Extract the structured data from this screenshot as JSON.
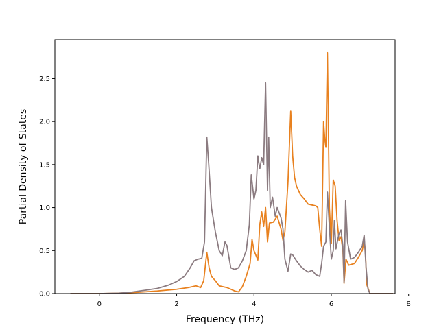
{
  "chart_data": {
    "type": "line",
    "xlabel": "Frequency (THz)",
    "ylabel": "Partial Density of States",
    "xlim": [
      -1.15,
      7.65
    ],
    "ylim": [
      0,
      2.95
    ],
    "xticks": [
      {
        "value": 0,
        "label": "0"
      },
      {
        "value": 2,
        "label": "2"
      },
      {
        "value": 4,
        "label": "4"
      },
      {
        "value": 6,
        "label": "6"
      },
      {
        "value": 8,
        "label": "8"
      }
    ],
    "yticks": [
      {
        "value": 0.0,
        "label": "0.0"
      },
      {
        "value": 0.5,
        "label": "0.5"
      },
      {
        "value": 1.0,
        "label": "1.0"
      },
      {
        "value": 1.5,
        "label": "1.5"
      },
      {
        "value": 2.0,
        "label": "2.0"
      },
      {
        "value": 2.5,
        "label": "2.5"
      }
    ],
    "grid": false,
    "series": [
      {
        "color": "#e8811f",
        "points": [
          [
            -0.75,
            0.0
          ],
          [
            0.0,
            0.0
          ],
          [
            0.5,
            0.005
          ],
          [
            1.0,
            0.015
          ],
          [
            1.5,
            0.03
          ],
          [
            2.0,
            0.05
          ],
          [
            2.3,
            0.07
          ],
          [
            2.5,
            0.09
          ],
          [
            2.62,
            0.07
          ],
          [
            2.7,
            0.15
          ],
          [
            2.78,
            0.48
          ],
          [
            2.84,
            0.3
          ],
          [
            2.9,
            0.2
          ],
          [
            3.0,
            0.15
          ],
          [
            3.1,
            0.09
          ],
          [
            3.3,
            0.07
          ],
          [
            3.5,
            0.03
          ],
          [
            3.6,
            0.02
          ],
          [
            3.7,
            0.08
          ],
          [
            3.8,
            0.2
          ],
          [
            3.9,
            0.35
          ],
          [
            3.95,
            0.63
          ],
          [
            4.0,
            0.5
          ],
          [
            4.1,
            0.39
          ],
          [
            4.15,
            0.8
          ],
          [
            4.2,
            0.95
          ],
          [
            4.25,
            0.78
          ],
          [
            4.3,
            1.0
          ],
          [
            4.35,
            0.6
          ],
          [
            4.4,
            0.82
          ],
          [
            4.5,
            0.83
          ],
          [
            4.6,
            0.9
          ],
          [
            4.7,
            0.75
          ],
          [
            4.75,
            0.62
          ],
          [
            4.8,
            0.72
          ],
          [
            4.88,
            1.3
          ],
          [
            4.95,
            2.12
          ],
          [
            5.0,
            1.6
          ],
          [
            5.05,
            1.35
          ],
          [
            5.1,
            1.25
          ],
          [
            5.2,
            1.15
          ],
          [
            5.3,
            1.1
          ],
          [
            5.4,
            1.04
          ],
          [
            5.5,
            1.03
          ],
          [
            5.6,
            1.02
          ],
          [
            5.65,
            1.0
          ],
          [
            5.7,
            0.75
          ],
          [
            5.75,
            0.55
          ],
          [
            5.8,
            2.0
          ],
          [
            5.83,
            1.8
          ],
          [
            5.86,
            1.7
          ],
          [
            5.9,
            2.8
          ],
          [
            5.95,
            1.0
          ],
          [
            6.0,
            0.58
          ],
          [
            6.05,
            1.32
          ],
          [
            6.1,
            1.25
          ],
          [
            6.15,
            0.85
          ],
          [
            6.2,
            0.62
          ],
          [
            6.25,
            0.66
          ],
          [
            6.3,
            0.5
          ],
          [
            6.33,
            0.12
          ],
          [
            6.38,
            0.4
          ],
          [
            6.45,
            0.33
          ],
          [
            6.6,
            0.35
          ],
          [
            6.7,
            0.42
          ],
          [
            6.8,
            0.5
          ],
          [
            6.85,
            0.62
          ],
          [
            6.88,
            0.5
          ],
          [
            6.92,
            0.1
          ],
          [
            7.0,
            0.0
          ],
          [
            7.6,
            0.0
          ]
        ]
      },
      {
        "color": "#8b7b80",
        "points": [
          [
            -0.75,
            0.0
          ],
          [
            0.0,
            0.0
          ],
          [
            0.5,
            0.005
          ],
          [
            0.8,
            0.015
          ],
          [
            1.2,
            0.04
          ],
          [
            1.5,
            0.06
          ],
          [
            1.8,
            0.1
          ],
          [
            2.0,
            0.14
          ],
          [
            2.2,
            0.2
          ],
          [
            2.35,
            0.3
          ],
          [
            2.45,
            0.38
          ],
          [
            2.55,
            0.4
          ],
          [
            2.65,
            0.41
          ],
          [
            2.72,
            0.6
          ],
          [
            2.78,
            1.82
          ],
          [
            2.83,
            1.5
          ],
          [
            2.9,
            1.0
          ],
          [
            3.0,
            0.72
          ],
          [
            3.1,
            0.5
          ],
          [
            3.18,
            0.44
          ],
          [
            3.25,
            0.6
          ],
          [
            3.3,
            0.56
          ],
          [
            3.4,
            0.3
          ],
          [
            3.5,
            0.28
          ],
          [
            3.6,
            0.3
          ],
          [
            3.7,
            0.38
          ],
          [
            3.8,
            0.5
          ],
          [
            3.88,
            0.8
          ],
          [
            3.93,
            1.38
          ],
          [
            4.0,
            1.1
          ],
          [
            4.05,
            1.2
          ],
          [
            4.1,
            1.6
          ],
          [
            4.15,
            1.45
          ],
          [
            4.2,
            1.58
          ],
          [
            4.25,
            1.5
          ],
          [
            4.3,
            2.45
          ],
          [
            4.35,
            1.2
          ],
          [
            4.38,
            1.82
          ],
          [
            4.42,
            1.0
          ],
          [
            4.48,
            1.12
          ],
          [
            4.55,
            0.9
          ],
          [
            4.6,
            1.0
          ],
          [
            4.7,
            0.88
          ],
          [
            4.75,
            0.75
          ],
          [
            4.8,
            0.4
          ],
          [
            4.88,
            0.26
          ],
          [
            4.95,
            0.46
          ],
          [
            5.0,
            0.45
          ],
          [
            5.1,
            0.38
          ],
          [
            5.2,
            0.32
          ],
          [
            5.3,
            0.28
          ],
          [
            5.4,
            0.25
          ],
          [
            5.5,
            0.27
          ],
          [
            5.6,
            0.22
          ],
          [
            5.7,
            0.2
          ],
          [
            5.75,
            0.35
          ],
          [
            5.8,
            0.55
          ],
          [
            5.86,
            0.6
          ],
          [
            5.9,
            1.18
          ],
          [
            5.95,
            0.78
          ],
          [
            6.0,
            0.4
          ],
          [
            6.05,
            0.5
          ],
          [
            6.08,
            0.85
          ],
          [
            6.12,
            0.52
          ],
          [
            6.2,
            0.7
          ],
          [
            6.25,
            0.74
          ],
          [
            6.3,
            0.55
          ],
          [
            6.33,
            0.13
          ],
          [
            6.37,
            1.08
          ],
          [
            6.42,
            0.6
          ],
          [
            6.5,
            0.4
          ],
          [
            6.6,
            0.42
          ],
          [
            6.7,
            0.48
          ],
          [
            6.8,
            0.55
          ],
          [
            6.85,
            0.68
          ],
          [
            6.9,
            0.3
          ],
          [
            6.95,
            0.05
          ],
          [
            7.0,
            0.0
          ],
          [
            7.6,
            0.0
          ]
        ]
      }
    ]
  }
}
